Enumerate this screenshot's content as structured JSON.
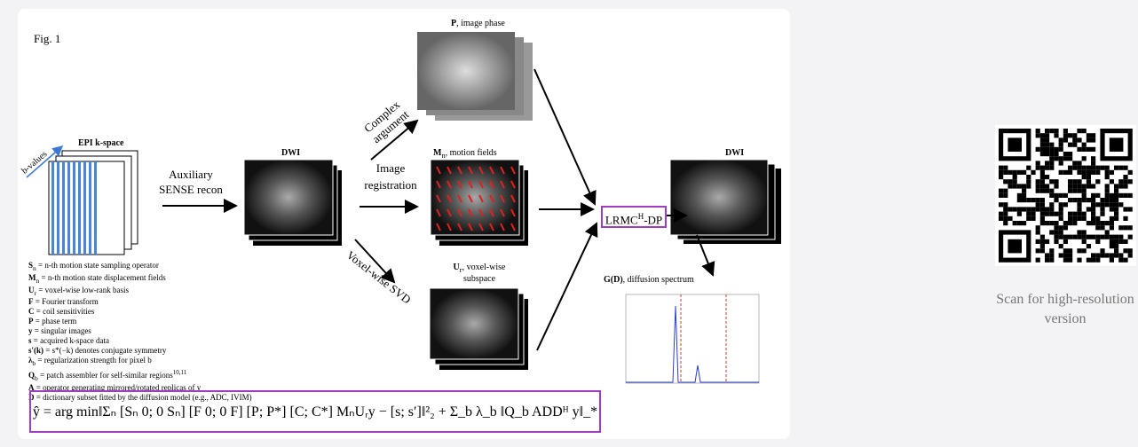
{
  "figure": {
    "label": "Fig. 1",
    "epi": {
      "title": "EPI k-space",
      "axis": "b-values"
    },
    "step_sense": {
      "line1": "Auxiliary",
      "line2": "SENSE recon"
    },
    "dwi_in": "DWI",
    "step_registration": {
      "line1": "Image",
      "line2": "registration"
    },
    "motion": {
      "sym": "M",
      "sub": "n",
      "text": ", motion fields"
    },
    "phase": {
      "sym": "P",
      "text": ", image phase"
    },
    "step_complex": {
      "line1": "Complex",
      "line2": "argument"
    },
    "step_svd": "Voxel-wise SVD",
    "subspace": {
      "sym": "U",
      "sub": "r",
      "text": ", voxel-wise",
      "line2": "subspace"
    },
    "lrmc": {
      "base": "LRMC",
      "sup": "H",
      "rest": "-DP"
    },
    "dwi_out": "DWI",
    "spectrum": {
      "sym": "G(D)",
      "text": ", diffusion spectrum"
    },
    "legend": [
      {
        "sym": "S",
        "sub": "n",
        "desc": " = n-th motion state sampling operator"
      },
      {
        "sym": "M",
        "sub": "n",
        "desc": " = n-th motion state displacement fields"
      },
      {
        "sym": "U",
        "sub": "r",
        "desc": " = voxel-wise low-rank basis"
      },
      {
        "sym": "F",
        "desc": " = Fourier transform"
      },
      {
        "sym": "C",
        "desc": " = coil sensitivities"
      },
      {
        "sym": "P",
        "desc": " = phase term"
      },
      {
        "sym": "y",
        "desc": " = singular images"
      },
      {
        "sym": "s",
        "desc": " = acquired k-space data"
      },
      {
        "sym": "s′(k)",
        "desc": " = s*(−k) denotes conjugate symmetry"
      },
      {
        "sym": "λ",
        "sub": "b",
        "desc": " = regularization strength for pixel b"
      },
      {
        "sym": "Q",
        "sub": "b",
        "desc": " = patch assembler for self-similar regions",
        "sup": "10,11"
      },
      {
        "sym": "A",
        "desc": " = operator generating mirrored/rotated replicas of y"
      },
      {
        "sym": "D",
        "desc": " = dictionary subset fitted by the diffusion model (e.g., ADC, IVIM)"
      }
    ],
    "equation": "ŷ = arg min‖Σₙ [Sₙ 0; 0 Sₙ] [F 0; 0 F] [P; P*] [C; C*] MₙUᵣy − [s; s′]‖²₂ + Σ_b λ_b ‖Q_b ADDᴴ y‖_*"
  },
  "qr_caption": "Scan for high-resolution version"
}
